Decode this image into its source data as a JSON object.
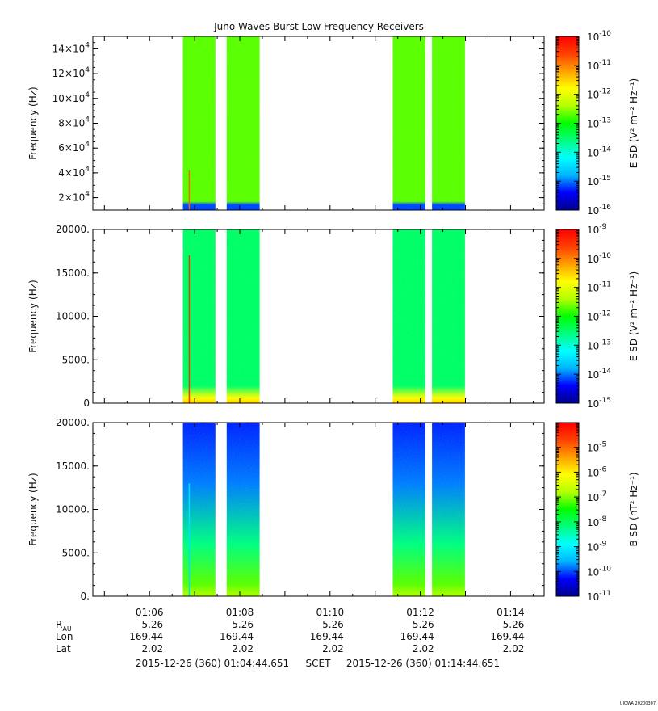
{
  "title": "Juno Waves Burst Low Frequency Receivers",
  "credit": "UIOWA 20200307",
  "x_axis": {
    "range_min": [
      4.744,
      14.744
    ],
    "ticks": [
      "01:06",
      "01:08",
      "01:10",
      "01:12",
      "01:14"
    ],
    "tick_min": [
      6,
      8,
      10,
      12,
      14
    ]
  },
  "ephemeris": {
    "rows": [
      {
        "label": "R",
        "sub": "AU",
        "values": [
          "5.26",
          "5.26",
          "5.26",
          "5.26",
          "5.26"
        ]
      },
      {
        "label": "Lon",
        "sub": "",
        "values": [
          "169.44",
          "169.44",
          "169.44",
          "169.44",
          "169.44"
        ]
      },
      {
        "label": "Lat",
        "sub": "",
        "values": [
          "2.02",
          "2.02",
          "2.02",
          "2.02",
          "2.02"
        ]
      }
    ]
  },
  "time_range": {
    "start": "2015-12-26 (360) 01:04:44.651",
    "label": "SCET",
    "end": "2015-12-26 (360) 01:14:44.651"
  },
  "colors": {
    "background": "#ffffff",
    "colormap": [
      "#00008b",
      "#0000ff",
      "#00b4ff",
      "#00ffff",
      "#00ff80",
      "#00ff00",
      "#b4ff00",
      "#ffff00",
      "#ffa000",
      "#ff4000",
      "#ff0000"
    ]
  },
  "chart_data": [
    {
      "type": "heatmap",
      "name": "panel-1",
      "ylabel": "Frequency (Hz)",
      "ylim": [
        10000,
        150000
      ],
      "yticks": [
        {
          "v": 20000,
          "m": "2",
          "e": "4"
        },
        {
          "v": 40000,
          "m": "4",
          "e": "4"
        },
        {
          "v": 60000,
          "m": "6",
          "e": "4"
        },
        {
          "v": 80000,
          "m": "8",
          "e": "4"
        },
        {
          "v": 100000,
          "m": "10",
          "e": "4"
        },
        {
          "v": 120000,
          "m": "12",
          "e": "4"
        },
        {
          "v": 140000,
          "m": "14",
          "e": "4"
        }
      ],
      "colorbar": {
        "label": "E SD (V² m⁻² Hz⁻¹)",
        "log_range": [
          -16,
          -10
        ],
        "ticks": [
          "-16",
          "-15",
          "-14",
          "-13",
          "-12",
          "-11",
          "-10"
        ]
      },
      "bursts_min": [
        [
          6.74,
          7.46
        ],
        [
          7.71,
          8.44
        ],
        [
          11.39,
          12.11
        ],
        [
          12.26,
          12.99
        ]
      ],
      "burst_level": 0.55,
      "low_freq_level": 0.14,
      "spike": {
        "t_min": 6.88,
        "top": 42000,
        "color": "#ff6000"
      }
    },
    {
      "type": "heatmap",
      "name": "panel-2",
      "ylabel": "Frequency (Hz)",
      "ylim": [
        0,
        20000
      ],
      "yticks": [
        {
          "v": 0,
          "m": "0",
          "e": ""
        },
        {
          "v": 5000,
          "m": "5000.",
          "e": ""
        },
        {
          "v": 10000,
          "m": "10000.",
          "e": ""
        },
        {
          "v": 15000,
          "m": "15000.",
          "e": ""
        },
        {
          "v": 20000,
          "m": "20000.",
          "e": ""
        }
      ],
      "colorbar": {
        "label": "E SD (V² m⁻² Hz⁻¹)",
        "log_range": [
          -15,
          -9
        ],
        "ticks": [
          "-15",
          "-14",
          "-13",
          "-12",
          "-11",
          "-10",
          "-9"
        ]
      },
      "bursts_min": [
        [
          6.74,
          7.46
        ],
        [
          7.71,
          8.44
        ],
        [
          11.39,
          12.11
        ],
        [
          12.26,
          12.99
        ]
      ],
      "burst_level": 0.42,
      "low_freq_level": 0.7,
      "spike": {
        "t_min": 6.88,
        "top": 17000,
        "color": "#ff3000"
      }
    },
    {
      "type": "heatmap",
      "name": "panel-3",
      "ylabel": "Frequency (Hz)",
      "ylim": [
        0,
        20000
      ],
      "yticks": [
        {
          "v": 0,
          "m": "0.",
          "e": ""
        },
        {
          "v": 5000,
          "m": "5000.",
          "e": ""
        },
        {
          "v": 10000,
          "m": "10000.",
          "e": ""
        },
        {
          "v": 15000,
          "m": "15000.",
          "e": ""
        },
        {
          "v": 20000,
          "m": "20000.",
          "e": ""
        }
      ],
      "colorbar": {
        "label": "B SD (nT² Hz⁻¹)",
        "log_range": [
          -11,
          -4
        ],
        "ticks": [
          "-11",
          "-10",
          "-9",
          "-8",
          "-7",
          "-6",
          "-5"
        ]
      },
      "bursts_min": [
        [
          6.74,
          7.46
        ],
        [
          7.71,
          8.44
        ],
        [
          11.39,
          12.11
        ],
        [
          12.26,
          12.99
        ]
      ],
      "burst_level": 0.12,
      "low_freq_level": 0.55,
      "spike": {
        "t_min": 6.88,
        "top": 13000,
        "color": "#00e0ff"
      }
    }
  ]
}
